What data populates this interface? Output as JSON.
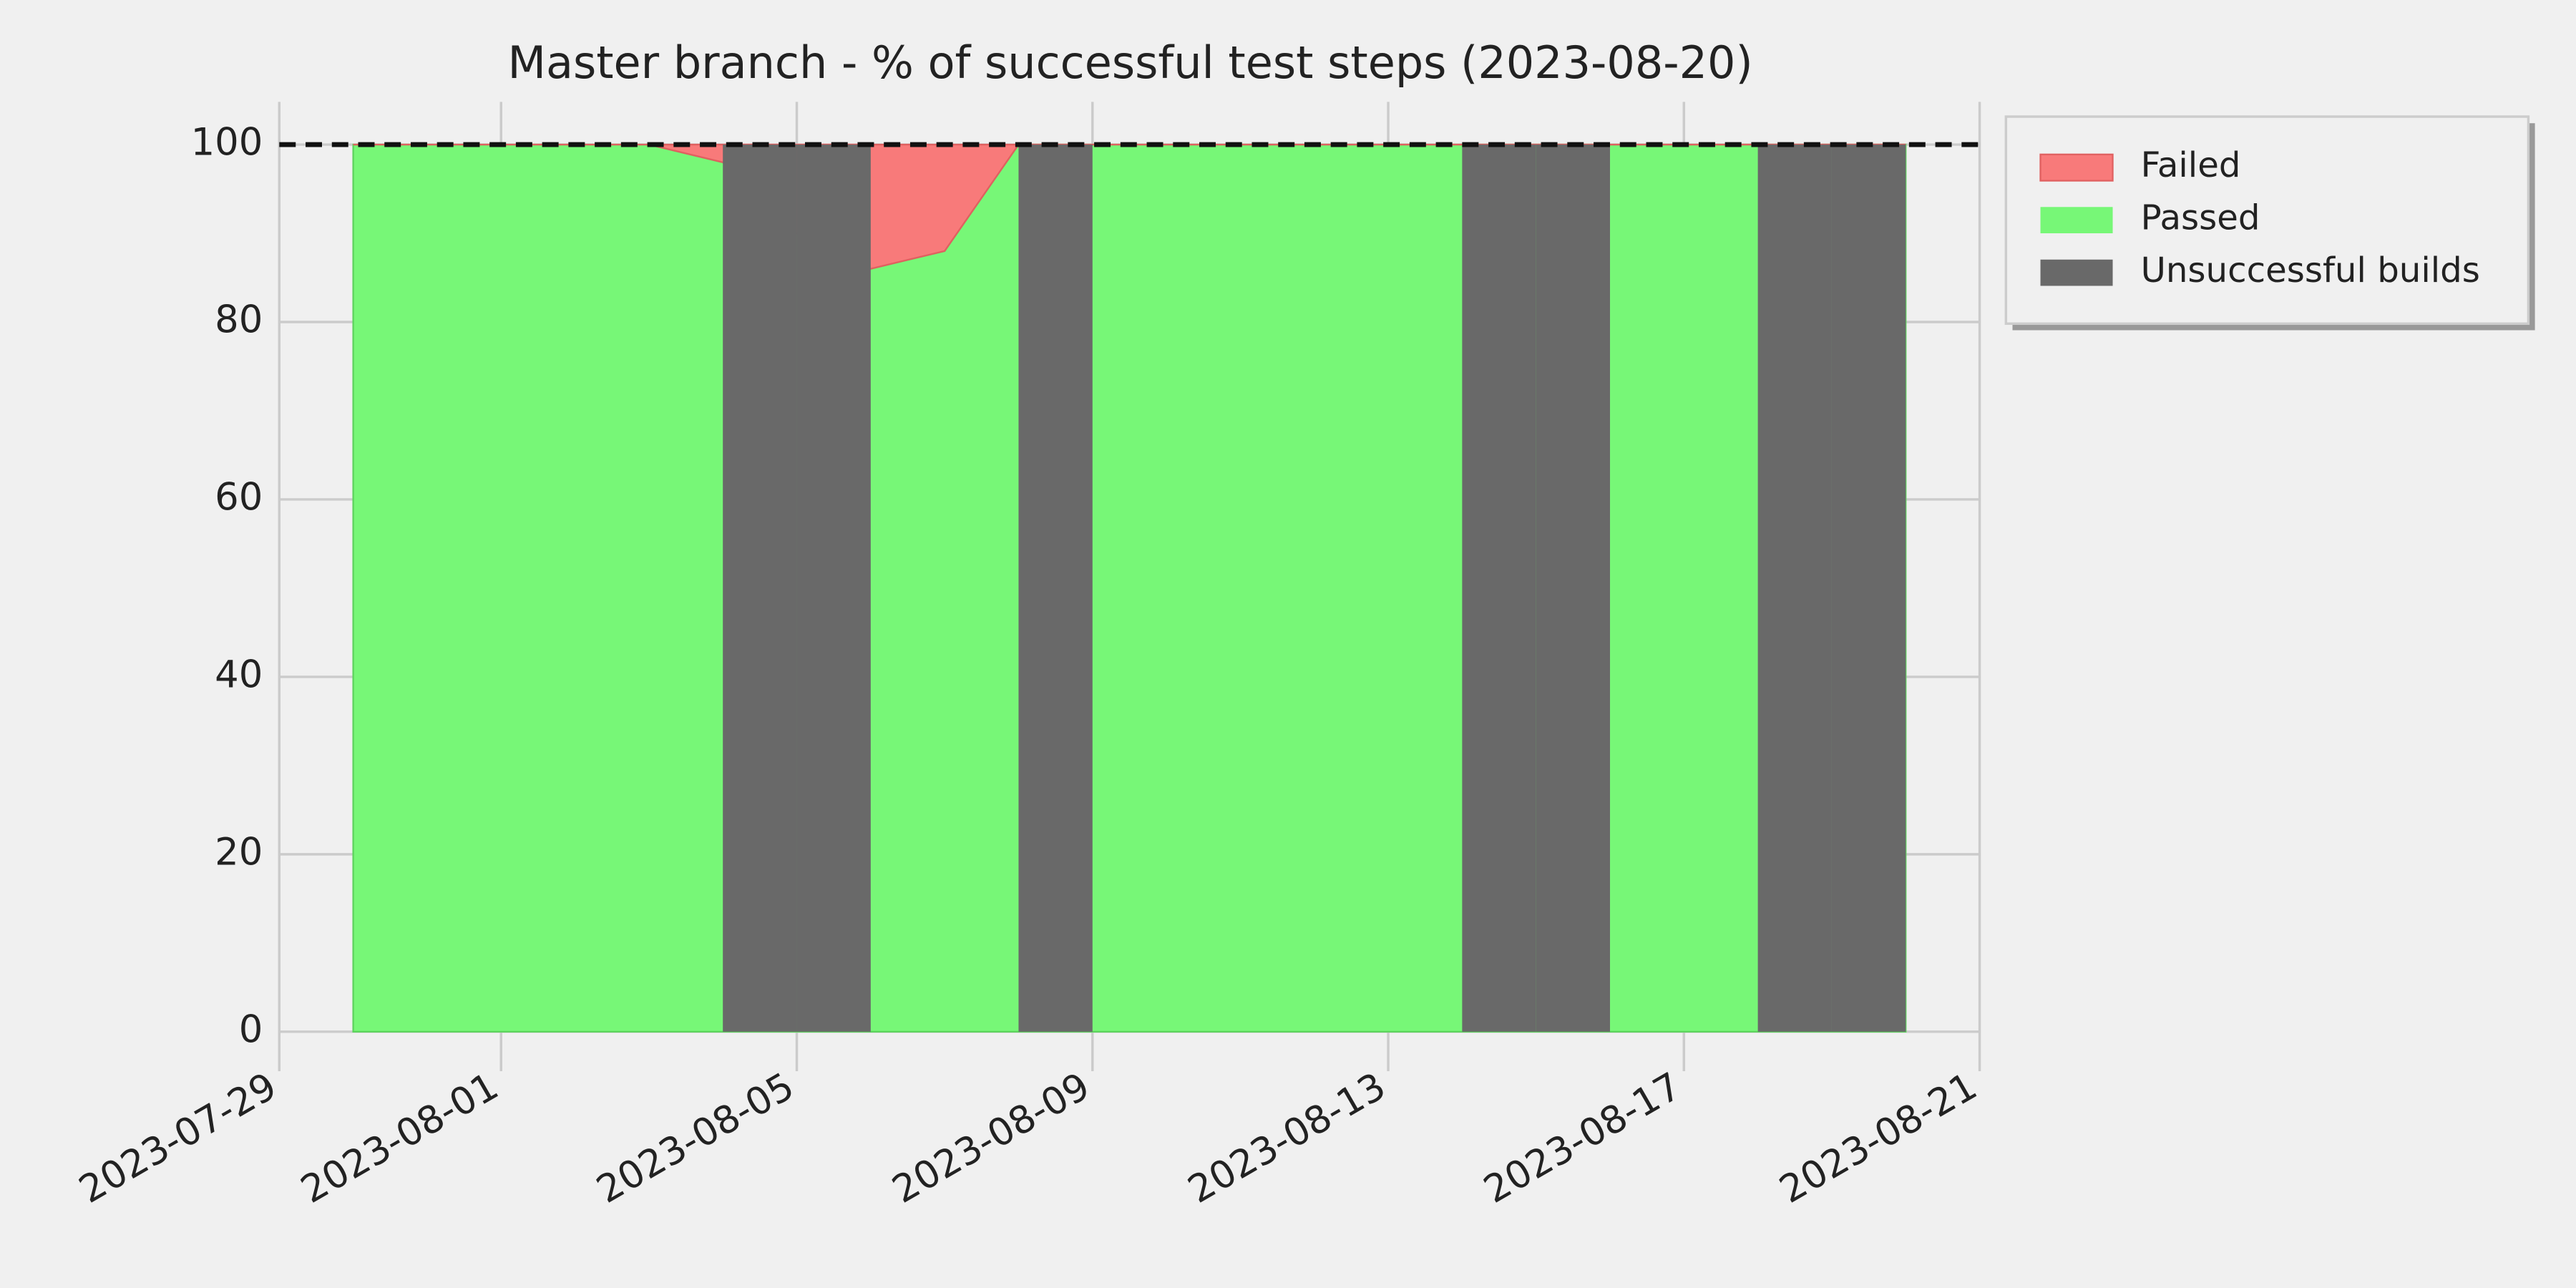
{
  "chart_data": {
    "type": "area",
    "title": "Master branch - % of successful test steps (2023-08-20)",
    "x": [
      "2023-07-30",
      "2023-07-31",
      "2023-08-01",
      "2023-08-02",
      "2023-08-03",
      "2023-08-04",
      "2023-08-05",
      "2023-08-06",
      "2023-08-07",
      "2023-08-08",
      "2023-08-09",
      "2023-08-10",
      "2023-08-11",
      "2023-08-12",
      "2023-08-13",
      "2023-08-14",
      "2023-08-15",
      "2023-08-16",
      "2023-08-17",
      "2023-08-18",
      "2023-08-19",
      "2023-08-20"
    ],
    "series": [
      {
        "name": "Failed",
        "color": "#f87a7a",
        "values": [
          0,
          0,
          0,
          0,
          0,
          2,
          10,
          14,
          12,
          0,
          0,
          0,
          0,
          0,
          0,
          0,
          0,
          0,
          0,
          0,
          0,
          0
        ]
      },
      {
        "name": "Passed",
        "color": "#77f777",
        "values": [
          100,
          100,
          100,
          100,
          100,
          98,
          90,
          86,
          88,
          100,
          100,
          100,
          100,
          100,
          100,
          100,
          100,
          100,
          100,
          100,
          100,
          100
        ]
      },
      {
        "name": "Unsuccessful builds",
        "color": "#696969",
        "values": [
          0,
          0,
          0,
          0,
          0,
          100,
          100,
          0,
          0,
          100,
          0,
          0,
          0,
          0,
          0,
          100,
          100,
          0,
          0,
          100,
          100,
          0
        ]
      }
    ],
    "xlim": [
      "2023-07-29",
      "2023-08-21"
    ],
    "xticks": [
      "2023-07-29",
      "2023-08-01",
      "2023-08-05",
      "2023-08-09",
      "2023-08-13",
      "2023-08-17",
      "2023-08-21"
    ],
    "ylim": [
      0,
      100
    ],
    "yticks": [
      0,
      20,
      40,
      60,
      80,
      100
    ],
    "reference_line": 100,
    "grid": true,
    "legend": "outside-upper-right"
  }
}
